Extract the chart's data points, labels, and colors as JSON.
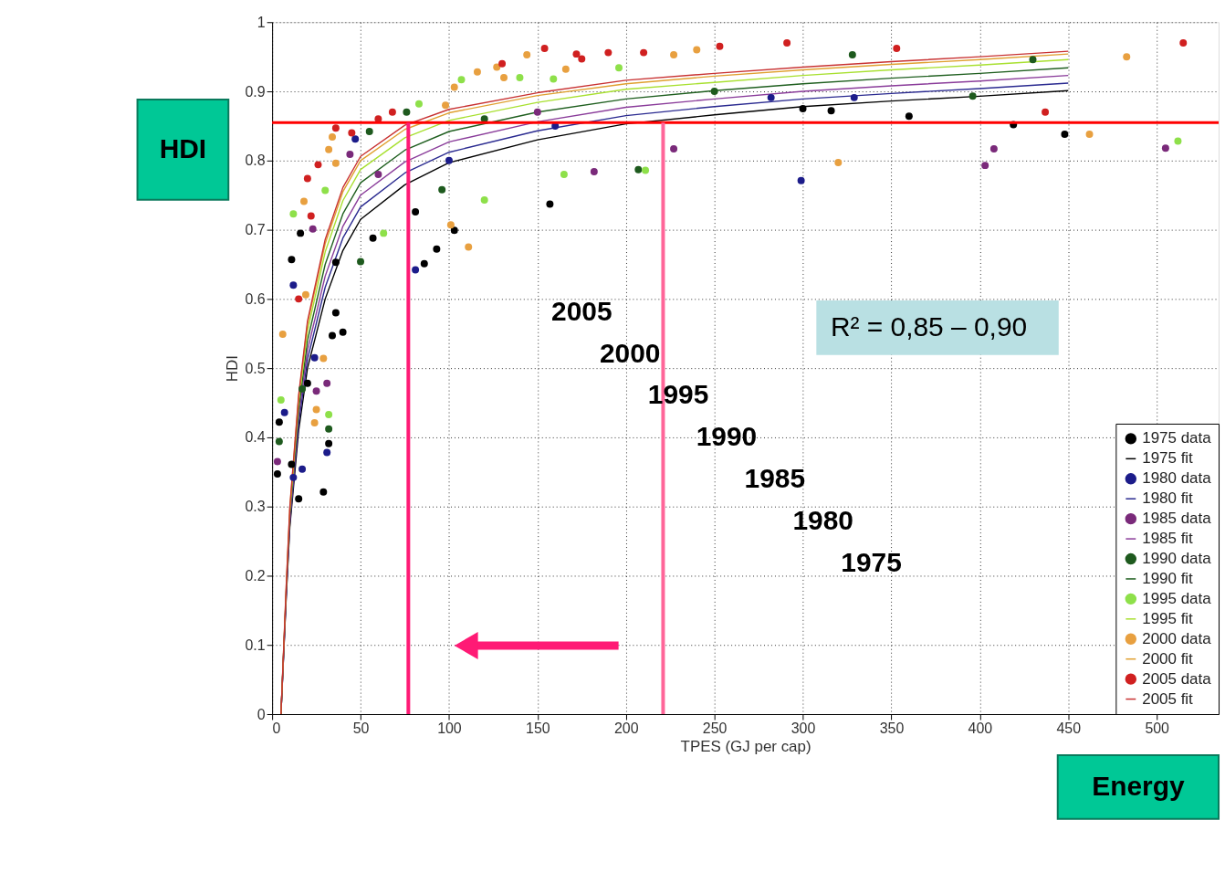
{
  "chart_data": {
    "type": "scatter",
    "xlabel": "TPES (GJ per cap)",
    "ylabel": "HDI",
    "xlim": [
      0,
      535
    ],
    "ylim": [
      0,
      1
    ],
    "xticks": [
      0,
      50,
      100,
      150,
      200,
      250,
      300,
      350,
      400,
      450,
      500
    ],
    "yticks": [
      0,
      0.1,
      0.2,
      0.3,
      0.4,
      0.5,
      0.6,
      0.7,
      0.8,
      0.9,
      1
    ],
    "grid": true,
    "legend": "bottom right",
    "series": [
      {
        "name": "1975 data",
        "marker": "circle",
        "color": "#000000",
        "x": [
          448,
          419,
          360,
          316,
          300,
          157,
          93,
          86,
          81,
          103,
          57,
          16,
          11,
          36,
          36,
          40,
          34,
          20,
          32,
          29,
          15,
          3,
          4,
          11
        ],
        "values": [
          0.838,
          0.852,
          0.864,
          0.872,
          0.875,
          0.737,
          0.672,
          0.651,
          0.726,
          0.699,
          0.688,
          0.695,
          0.657,
          0.653,
          0.58,
          0.552,
          0.547,
          0.478,
          0.391,
          0.321,
          0.311,
          0.347,
          0.422,
          0.361
        ]
      },
      {
        "name": "1975 fit",
        "type": "line",
        "color": "#000000",
        "x": [
          5,
          8,
          10,
          15,
          20,
          30,
          40,
          50,
          75,
          100,
          150,
          200,
          250,
          300,
          350,
          400,
          450
        ],
        "values": [
          0,
          0.17,
          0.27,
          0.41,
          0.5,
          0.6,
          0.67,
          0.715,
          0.765,
          0.797,
          0.83,
          0.853,
          0.866,
          0.878,
          0.886,
          0.893,
          0.901
        ]
      },
      {
        "name": "1980 data",
        "marker": "circle",
        "color": "#1c1c8a",
        "x": [
          299,
          329,
          282,
          81,
          47,
          12,
          31,
          17,
          7,
          12,
          24,
          160,
          100
        ],
        "values": [
          0.771,
          0.891,
          0.891,
          0.642,
          0.831,
          0.62,
          0.378,
          0.354,
          0.436,
          0.342,
          0.515,
          0.85,
          0.8
        ]
      },
      {
        "name": "1980 fit",
        "type": "line",
        "color": "#2a2a90",
        "x": [
          5,
          8,
          10,
          15,
          20,
          30,
          40,
          50,
          75,
          100,
          150,
          200,
          250,
          300,
          350,
          400,
          450
        ],
        "values": [
          0,
          0.173,
          0.276,
          0.42,
          0.513,
          0.617,
          0.688,
          0.733,
          0.782,
          0.812,
          0.843,
          0.865,
          0.878,
          0.889,
          0.897,
          0.904,
          0.912
        ]
      },
      {
        "name": "1985 data",
        "marker": "circle",
        "color": "#7a2a7a",
        "x": [
          505,
          408,
          403,
          182,
          227,
          44,
          23,
          25,
          31,
          3,
          150,
          60
        ],
        "values": [
          0.818,
          0.817,
          0.793,
          0.784,
          0.817,
          0.809,
          0.701,
          0.467,
          0.478,
          0.365,
          0.87,
          0.78
        ]
      },
      {
        "name": "1985 fit",
        "type": "line",
        "color": "#8a3c9a",
        "x": [
          5,
          8,
          10,
          15,
          20,
          30,
          40,
          50,
          75,
          100,
          150,
          200,
          250,
          300,
          350,
          400,
          450
        ],
        "values": [
          0,
          0.177,
          0.281,
          0.43,
          0.526,
          0.633,
          0.705,
          0.75,
          0.798,
          0.827,
          0.856,
          0.877,
          0.889,
          0.9,
          0.908,
          0.915,
          0.923
        ]
      },
      {
        "name": "1990 data",
        "marker": "circle",
        "color": "#1e5a1e",
        "x": [
          328,
          430,
          396,
          207,
          96,
          76,
          55,
          50,
          32,
          4,
          17,
          250,
          120
        ],
        "values": [
          0.953,
          0.946,
          0.893,
          0.787,
          0.758,
          0.87,
          0.842,
          0.654,
          0.412,
          0.394,
          0.47,
          0.9,
          0.86
        ]
      },
      {
        "name": "1990 fit",
        "type": "line",
        "color": "#1f5f1f",
        "x": [
          5,
          8,
          10,
          15,
          20,
          30,
          40,
          50,
          75,
          100,
          150,
          200,
          250,
          300,
          350,
          400,
          450
        ],
        "values": [
          0,
          0.18,
          0.287,
          0.44,
          0.54,
          0.65,
          0.723,
          0.768,
          0.815,
          0.842,
          0.87,
          0.889,
          0.901,
          0.911,
          0.919,
          0.926,
          0.934
        ]
      },
      {
        "name": "1995 data",
        "marker": "circle",
        "color": "#8ee04a",
        "x": [
          512,
          211,
          165,
          120,
          107,
          140,
          159,
          196,
          83,
          30,
          12,
          63,
          32,
          5
        ],
        "values": [
          0.828,
          0.786,
          0.78,
          0.743,
          0.917,
          0.92,
          0.918,
          0.934,
          0.882,
          0.757,
          0.723,
          0.695,
          0.433,
          0.454
        ]
      },
      {
        "name": "1995 fit",
        "type": "line",
        "color": "#a8e030",
        "x": [
          10,
          15,
          20,
          30,
          40,
          50,
          75,
          100,
          150,
          200,
          250,
          300,
          350,
          400,
          450
        ],
        "values": [
          0.293,
          0.451,
          0.554,
          0.668,
          0.742,
          0.787,
          0.833,
          0.858,
          0.884,
          0.903,
          0.913,
          0.923,
          0.931,
          0.938,
          0.946
        ]
      },
      {
        "name": "2000 data",
        "marker": "circle",
        "color": "#e8a040",
        "x": [
          483,
          462,
          320,
          111,
          101,
          144,
          227,
          240,
          116,
          127,
          131,
          166,
          103,
          98,
          34,
          32,
          36,
          18,
          6,
          19,
          29,
          24,
          25
        ],
        "values": [
          0.95,
          0.838,
          0.797,
          0.675,
          0.707,
          0.953,
          0.953,
          0.96,
          0.928,
          0.935,
          0.92,
          0.932,
          0.906,
          0.88,
          0.834,
          0.816,
          0.796,
          0.741,
          0.549,
          0.606,
          0.514,
          0.421,
          0.44
        ]
      },
      {
        "name": "2000 fit",
        "type": "line",
        "color": "#e0a030",
        "x": [
          5,
          8,
          10,
          15,
          20,
          30,
          40,
          50,
          75,
          100,
          150,
          200,
          250,
          300,
          350,
          400,
          450
        ],
        "values": [
          0,
          0.186,
          0.297,
          0.458,
          0.564,
          0.68,
          0.755,
          0.8,
          0.845,
          0.869,
          0.894,
          0.911,
          0.922,
          0.931,
          0.939,
          0.946,
          0.954
        ]
      },
      {
        "name": "2005 data",
        "marker": "circle",
        "color": "#d02020",
        "x": [
          515,
          437,
          253,
          291,
          353,
          154,
          172,
          190,
          210,
          175,
          68,
          36,
          26,
          20,
          15,
          22,
          45,
          60,
          130
        ],
        "values": [
          0.97,
          0.87,
          0.965,
          0.97,
          0.962,
          0.962,
          0.954,
          0.956,
          0.956,
          0.947,
          0.87,
          0.847,
          0.794,
          0.774,
          0.6,
          0.72,
          0.84,
          0.86,
          0.94
        ]
      },
      {
        "name": "2005 fit",
        "type": "line",
        "color": "#c83232",
        "x": [
          5,
          8,
          10,
          15,
          20,
          30,
          40,
          50,
          75,
          100,
          150,
          200,
          250,
          300,
          350,
          400,
          450
        ],
        "values": [
          0,
          0.187,
          0.299,
          0.461,
          0.568,
          0.686,
          0.761,
          0.806,
          0.851,
          0.874,
          0.898,
          0.916,
          0.926,
          0.935,
          0.943,
          0.95,
          0.958
        ]
      }
    ],
    "ref_lines": [
      {
        "axis": "y",
        "value": 0.855,
        "color": "#ff0000"
      },
      {
        "axis": "x",
        "value": 77,
        "color": "#ff1a75"
      },
      {
        "axis": "x",
        "value": 221,
        "color": "#ff6699"
      }
    ],
    "annotations": [
      "HDI",
      "Energy",
      "R² = 0,85 – 0,90",
      "2005",
      "2000",
      "1995",
      "1990",
      "1985",
      "1980",
      "1975"
    ]
  }
}
